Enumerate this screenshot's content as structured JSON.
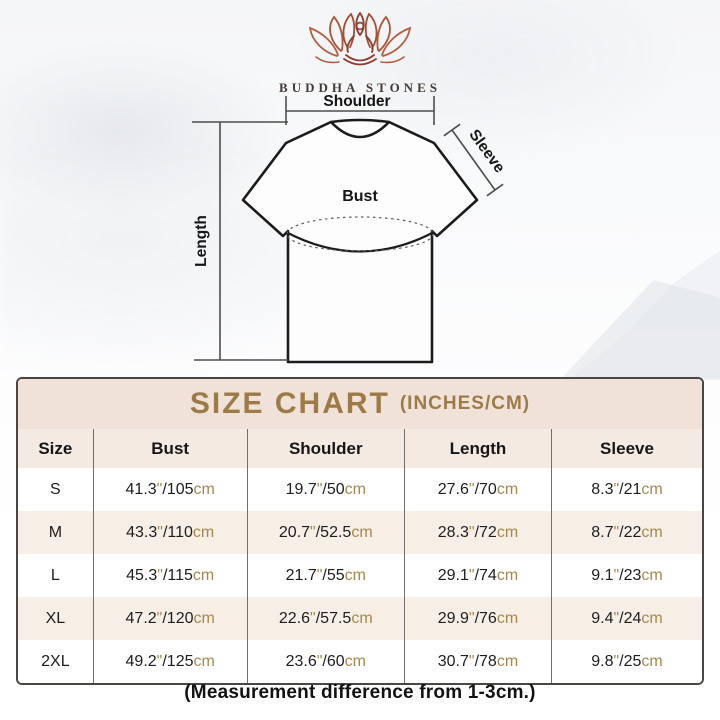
{
  "colors": {
    "title_band_bg": "#f1e2d9",
    "header_row_bg": "#f5eae2",
    "alt_row_bg": "#f7eee6",
    "accent_brown": "#9c7b46",
    "unit_tan": "#a6884f",
    "logo_red": "#a44b31"
  },
  "brand": {
    "name": "BUDDHA STONES",
    "logo_icon": "lotus-meditation-icon"
  },
  "diagram": {
    "labels": {
      "shoulder": "Shoulder",
      "sleeve": "Sleeve",
      "bust": "Bust",
      "length": "Length"
    }
  },
  "size_chart": {
    "title": "SIZE CHART",
    "title_suffix": "(INCHES/CM)",
    "columns": [
      "Size",
      "Bust",
      "Shoulder",
      "Length",
      "Sleeve"
    ],
    "measure_keys": [
      "bust",
      "shoulder",
      "length",
      "sleeve"
    ],
    "units": {
      "inch_mark": "\"",
      "slash": "/",
      "cm_suffix": "cm"
    },
    "rows": [
      {
        "size": "S",
        "bust": {
          "in": "41.3",
          "cm": "105"
        },
        "shoulder": {
          "in": "19.7",
          "cm": "50"
        },
        "length": {
          "in": "27.6",
          "cm": "70"
        },
        "sleeve": {
          "in": "8.3",
          "cm": "21"
        }
      },
      {
        "size": "M",
        "bust": {
          "in": "43.3",
          "cm": "110"
        },
        "shoulder": {
          "in": "20.7",
          "cm": "52.5"
        },
        "length": {
          "in": "28.3",
          "cm": "72"
        },
        "sleeve": {
          "in": "8.7",
          "cm": "22"
        }
      },
      {
        "size": "L",
        "bust": {
          "in": "45.3",
          "cm": "115"
        },
        "shoulder": {
          "in": "21.7",
          "cm": "55"
        },
        "length": {
          "in": "29.1",
          "cm": "74"
        },
        "sleeve": {
          "in": "9.1",
          "cm": "23"
        }
      },
      {
        "size": "XL",
        "bust": {
          "in": "47.2",
          "cm": "120"
        },
        "shoulder": {
          "in": "22.6",
          "cm": "57.5"
        },
        "length": {
          "in": "29.9",
          "cm": "76"
        },
        "sleeve": {
          "in": "9.4",
          "cm": "24"
        }
      },
      {
        "size": "2XL",
        "bust": {
          "in": "49.2",
          "cm": "125"
        },
        "shoulder": {
          "in": "23.6",
          "cm": "60"
        },
        "length": {
          "in": "30.7",
          "cm": "78"
        },
        "sleeve": {
          "in": "9.8",
          "cm": "25"
        }
      }
    ]
  },
  "footnote": "(Measurement difference from 1-3cm.)"
}
